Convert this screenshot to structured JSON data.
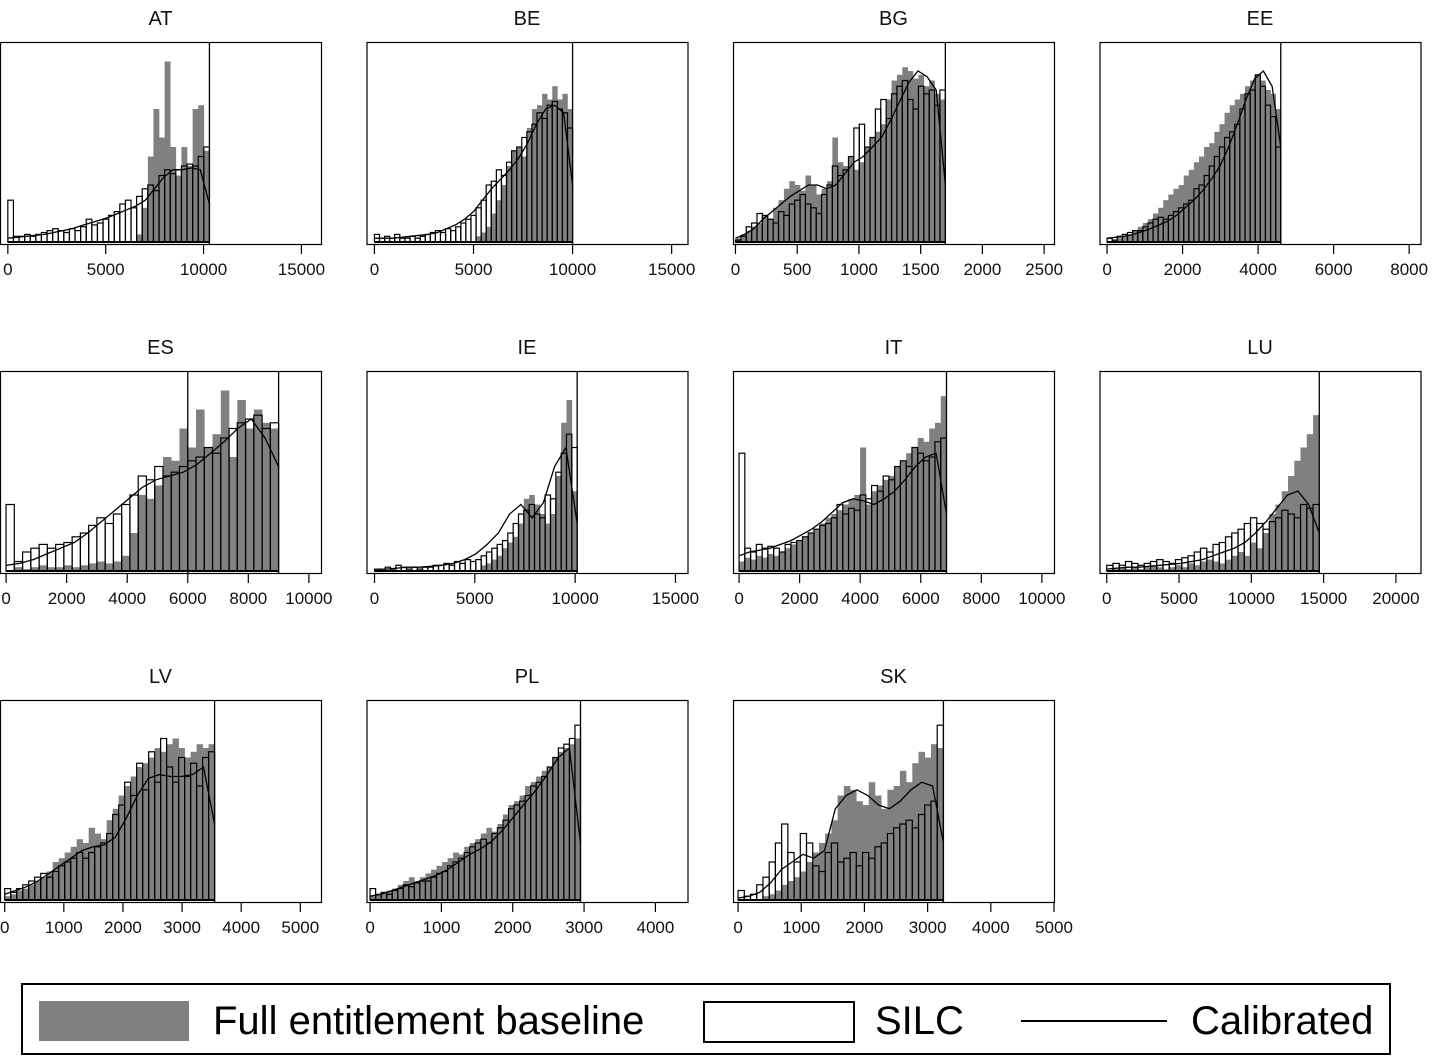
{
  "chart_data": [
    {
      "type": "bar",
      "title": "AT",
      "xticks": [
        0,
        5000,
        10000,
        15000
      ],
      "xlim": [
        -400,
        16000
      ],
      "vline": 10300,
      "baseline": [
        0,
        0,
        0,
        0,
        0,
        0,
        0,
        0,
        0,
        0,
        0,
        0,
        0,
        0,
        0,
        0,
        0,
        0,
        0,
        0,
        0,
        0,
        0,
        0.04,
        0.18,
        0.45,
        0.7,
        0.55,
        0.95,
        0.5,
        0.35,
        0.5,
        0.4,
        0.7,
        0.72,
        0.48
      ],
      "silc": [
        0.22,
        0.03,
        0.03,
        0.04,
        0.03,
        0.04,
        0.05,
        0.06,
        0.07,
        0.06,
        0.05,
        0.07,
        0.06,
        0.08,
        0.12,
        0.09,
        0.1,
        0.12,
        0.14,
        0.16,
        0.2,
        0.22,
        0.18,
        0.24,
        0.28,
        0.3,
        0.27,
        0.35,
        0.38,
        0.36,
        0.38,
        0.4,
        0.41,
        0.4,
        0.45,
        0.5
      ],
      "calib": [
        0.02,
        0.025,
        0.03,
        0.035,
        0.04,
        0.05,
        0.06,
        0.07,
        0.085,
        0.1,
        0.115,
        0.13,
        0.15,
        0.17,
        0.19,
        0.22,
        0.28,
        0.34,
        0.38,
        0.38,
        0.39,
        0.38,
        0.2
      ]
    },
    {
      "type": "bar",
      "title": "BE",
      "xticks": [
        0,
        5000,
        10000,
        15000
      ],
      "xlim": [
        -400,
        15800
      ],
      "vline": 10000,
      "baseline": [
        0,
        0,
        0,
        0,
        0,
        0,
        0,
        0,
        0,
        0,
        0,
        0,
        0,
        0,
        0,
        0,
        0,
        0,
        0,
        0,
        0.03,
        0.05,
        0.08,
        0.15,
        0.22,
        0.3,
        0.4,
        0.48,
        0.5,
        0.45,
        0.6,
        0.7,
        0.72,
        0.78,
        0.75,
        0.82,
        0.75,
        0.78,
        0.7
      ],
      "silc": [
        0.04,
        0.02,
        0.03,
        0.02,
        0.04,
        0.02,
        0.02,
        0.03,
        0.02,
        0.03,
        0.04,
        0.05,
        0.06,
        0.05,
        0.07,
        0.06,
        0.08,
        0.1,
        0.12,
        0.14,
        0.18,
        0.22,
        0.3,
        0.32,
        0.38,
        0.35,
        0.42,
        0.48,
        0.5,
        0.55,
        0.58,
        0.62,
        0.68,
        0.65,
        0.72,
        0.74,
        0.7,
        0.68,
        0.6
      ],
      "calib": [
        0.02,
        0.02,
        0.02,
        0.025,
        0.03,
        0.035,
        0.04,
        0.05,
        0.07,
        0.09,
        0.12,
        0.16,
        0.22,
        0.28,
        0.33,
        0.38,
        0.44,
        0.52,
        0.62,
        0.7,
        0.72,
        0.68,
        0.3
      ]
    },
    {
      "type": "bar",
      "title": "BG",
      "xticks": [
        0,
        500,
        1000,
        1500,
        2000,
        2500
      ],
      "xlim": [
        -20,
        2580
      ],
      "vline": 1700,
      "baseline": [
        0.02,
        0.04,
        0.06,
        0.08,
        0.1,
        0.14,
        0.12,
        0.18,
        0.22,
        0.28,
        0.32,
        0.3,
        0.27,
        0.35,
        0.3,
        0.25,
        0.28,
        0.32,
        0.55,
        0.42,
        0.4,
        0.45,
        0.38,
        0.42,
        0.5,
        0.55,
        0.58,
        0.62,
        0.75,
        0.85,
        0.88,
        0.92,
        0.9,
        0.86,
        0.88,
        0.82,
        0.85,
        0.78,
        0.75
      ],
      "silc": [
        0.01,
        0.03,
        0.08,
        0.1,
        0.15,
        0.14,
        0.12,
        0.1,
        0.16,
        0.14,
        0.2,
        0.22,
        0.25,
        0.2,
        0.18,
        0.15,
        0.25,
        0.3,
        0.4,
        0.35,
        0.38,
        0.45,
        0.6,
        0.62,
        0.5,
        0.55,
        0.7,
        0.75,
        0.65,
        0.78,
        0.82,
        0.85,
        0.75,
        0.7,
        0.82,
        0.78,
        0.8,
        0.72,
        0.8
      ],
      "calib": [
        0.02,
        0.04,
        0.07,
        0.12,
        0.16,
        0.2,
        0.24,
        0.27,
        0.3,
        0.3,
        0.28,
        0.3,
        0.36,
        0.42,
        0.45,
        0.5,
        0.55,
        0.64,
        0.74,
        0.84,
        0.9,
        0.87,
        0.8,
        0.3
      ]
    },
    {
      "type": "bar",
      "title": "EE",
      "xticks": [
        0,
        2000,
        4000,
        6000,
        8000
      ],
      "xlim": [
        -200,
        8300
      ],
      "vline": 4600,
      "baseline": [
        0,
        0.01,
        0.02,
        0.03,
        0.04,
        0.06,
        0.08,
        0.1,
        0.12,
        0.15,
        0.18,
        0.22,
        0.25,
        0.28,
        0.3,
        0.35,
        0.38,
        0.42,
        0.45,
        0.5,
        0.52,
        0.58,
        0.62,
        0.68,
        0.72,
        0.75,
        0.78,
        0.82,
        0.85,
        0.88,
        0.85,
        0.8,
        0.78,
        0.7
      ],
      "silc": [
        0.02,
        0.01,
        0.03,
        0.04,
        0.05,
        0.06,
        0.06,
        0.08,
        0.1,
        0.12,
        0.13,
        0.12,
        0.14,
        0.16,
        0.18,
        0.2,
        0.22,
        0.28,
        0.3,
        0.35,
        0.4,
        0.45,
        0.5,
        0.55,
        0.58,
        0.62,
        0.7,
        0.78,
        0.8,
        0.88,
        0.82,
        0.72,
        0.66,
        0.5
      ],
      "calib": [
        0.02,
        0.025,
        0.03,
        0.04,
        0.055,
        0.07,
        0.09,
        0.11,
        0.14,
        0.18,
        0.22,
        0.27,
        0.33,
        0.4,
        0.5,
        0.62,
        0.75,
        0.86,
        0.9,
        0.82,
        0.5
      ]
    },
    {
      "type": "bar",
      "title": "ES",
      "xticks": [
        0,
        2000,
        4000,
        6000,
        8000,
        10000
      ],
      "xlim": [
        -200,
        10400
      ],
      "vline": 9000,
      "vline2": 6000,
      "baseline": [
        0,
        0.02,
        0.01,
        0.02,
        0.03,
        0.02,
        0.02,
        0.03,
        0.02,
        0.03,
        0.04,
        0.05,
        0.04,
        0.05,
        0.08,
        0.2,
        0.4,
        0.38,
        0.45,
        0.6,
        0.58,
        0.75,
        0.65,
        0.85,
        0.65,
        0.72,
        0.95,
        0.6,
        0.9,
        0.75,
        0.85,
        0.78,
        0.75
      ],
      "silc": [
        0.35,
        0.05,
        0.1,
        0.12,
        0.14,
        0.12,
        0.14,
        0.15,
        0.18,
        0.2,
        0.24,
        0.28,
        0.25,
        0.3,
        0.35,
        0.4,
        0.5,
        0.48,
        0.55,
        0.5,
        0.52,
        0.55,
        0.58,
        0.6,
        0.65,
        0.62,
        0.7,
        0.75,
        0.78,
        0.8,
        0.82,
        0.75,
        0.78
      ],
      "calib": [
        0.03,
        0.04,
        0.06,
        0.09,
        0.12,
        0.15,
        0.2,
        0.26,
        0.32,
        0.38,
        0.44,
        0.48,
        0.5,
        0.52,
        0.56,
        0.62,
        0.68,
        0.75,
        0.8,
        0.7,
        0.55
      ]
    },
    {
      "type": "bar",
      "title": "IE",
      "xticks": [
        0,
        5000,
        10000,
        15000
      ],
      "xlim": [
        -400,
        15600
      ],
      "vline": 10100,
      "baseline": [
        0,
        0,
        0,
        0,
        0,
        0,
        0,
        0,
        0,
        0,
        0,
        0,
        0,
        0,
        0,
        0,
        0,
        0,
        0,
        0,
        0.03,
        0.04,
        0.06,
        0.08,
        0.12,
        0.15,
        0.18,
        0.25,
        0.38,
        0.4,
        0.35,
        0.3,
        0.25,
        0.3,
        0.5,
        0.78,
        0.9,
        0.42
      ],
      "silc": [
        0.01,
        0.01,
        0.02,
        0.01,
        0.03,
        0.02,
        0.01,
        0.02,
        0.01,
        0.02,
        0.02,
        0.03,
        0.03,
        0.04,
        0.03,
        0.05,
        0.04,
        0.06,
        0.05,
        0.06,
        0.08,
        0.1,
        0.12,
        0.14,
        0.16,
        0.2,
        0.25,
        0.3,
        0.32,
        0.35,
        0.3,
        0.28,
        0.4,
        0.38,
        0.52,
        0.62,
        0.72,
        0.65
      ],
      "calib": [
        0.01,
        0.01,
        0.015,
        0.02,
        0.02,
        0.025,
        0.03,
        0.04,
        0.06,
        0.09,
        0.14,
        0.2,
        0.3,
        0.35,
        0.28,
        0.36,
        0.55,
        0.65,
        0.25
      ]
    },
    {
      "type": "bar",
      "title": "IT",
      "xticks": [
        0,
        2000,
        4000,
        6000,
        8000,
        10000
      ],
      "xlim": [
        -200,
        10400
      ],
      "vline": 6850,
      "baseline": [
        0.05,
        0.07,
        0.06,
        0.08,
        0.07,
        0.09,
        0.08,
        0.1,
        0.12,
        0.14,
        0.16,
        0.18,
        0.2,
        0.22,
        0.25,
        0.28,
        0.3,
        0.32,
        0.35,
        0.38,
        0.4,
        0.65,
        0.35,
        0.42,
        0.45,
        0.48,
        0.5,
        0.55,
        0.58,
        0.62,
        0.65,
        0.7,
        0.68,
        0.75,
        0.78,
        0.92
      ],
      "silc": [
        0.62,
        0.12,
        0.1,
        0.14,
        0.12,
        0.13,
        0.12,
        0.1,
        0.14,
        0.15,
        0.16,
        0.18,
        0.2,
        0.22,
        0.24,
        0.25,
        0.28,
        0.35,
        0.3,
        0.33,
        0.32,
        0.4,
        0.38,
        0.45,
        0.42,
        0.5,
        0.48,
        0.55,
        0.58,
        0.55,
        0.65,
        0.62,
        0.58,
        0.6,
        0.68,
        0.7
      ],
      "calib": [
        0.08,
        0.1,
        0.11,
        0.12,
        0.14,
        0.16,
        0.19,
        0.22,
        0.26,
        0.31,
        0.36,
        0.38,
        0.37,
        0.35,
        0.38,
        0.42,
        0.48,
        0.55,
        0.6,
        0.62,
        0.3
      ]
    },
    {
      "type": "bar",
      "title": "LU",
      "xticks": [
        0,
        5000,
        10000,
        15000,
        20000
      ],
      "xlim": [
        -500,
        21700
      ],
      "vline": 14700,
      "baseline": [
        0,
        0.01,
        0.02,
        0.01,
        0.02,
        0.01,
        0.02,
        0.03,
        0.02,
        0.01,
        0.02,
        0.03,
        0.02,
        0.04,
        0.03,
        0.05,
        0.06,
        0.05,
        0.04,
        0.06,
        0.08,
        0.1,
        0.08,
        0.15,
        0.12,
        0.2,
        0.3,
        0.35,
        0.42,
        0.5,
        0.58,
        0.65,
        0.72,
        0.82
      ],
      "silc": [
        0.03,
        0.04,
        0.03,
        0.05,
        0.04,
        0.03,
        0.04,
        0.05,
        0.06,
        0.05,
        0.04,
        0.06,
        0.07,
        0.08,
        0.1,
        0.12,
        0.1,
        0.14,
        0.15,
        0.18,
        0.2,
        0.22,
        0.25,
        0.28,
        0.25,
        0.22,
        0.26,
        0.28,
        0.32,
        0.3,
        0.28,
        0.35,
        0.33,
        0.35
      ],
      "calib": [
        0.01,
        0.015,
        0.02,
        0.02,
        0.025,
        0.03,
        0.035,
        0.04,
        0.05,
        0.06,
        0.08,
        0.1,
        0.12,
        0.15,
        0.2,
        0.26,
        0.33,
        0.4,
        0.42,
        0.35,
        0.2
      ]
    },
    {
      "type": "bar",
      "title": "LV",
      "xticks": [
        0,
        1000,
        2000,
        3000,
        4000,
        5000
      ],
      "xlim": [
        -80,
        5350
      ],
      "vline": 3550,
      "baseline": [
        0.02,
        0.03,
        0.05,
        0.06,
        0.08,
        0.1,
        0.12,
        0.15,
        0.2,
        0.22,
        0.25,
        0.28,
        0.32,
        0.3,
        0.38,
        0.35,
        0.32,
        0.42,
        0.48,
        0.55,
        0.6,
        0.65,
        0.7,
        0.72,
        0.75,
        0.8,
        0.78,
        0.82,
        0.85,
        0.8,
        0.75,
        0.78,
        0.82,
        0.8,
        0.82
      ],
      "silc": [
        0.06,
        0.04,
        0.06,
        0.08,
        0.1,
        0.12,
        0.14,
        0.12,
        0.15,
        0.18,
        0.2,
        0.22,
        0.25,
        0.22,
        0.25,
        0.28,
        0.3,
        0.35,
        0.45,
        0.5,
        0.62,
        0.55,
        0.72,
        0.58,
        0.78,
        0.62,
        0.85,
        0.7,
        0.62,
        0.75,
        0.65,
        0.72,
        0.6,
        0.75,
        0.78
      ],
      "calib": [
        0.03,
        0.05,
        0.07,
        0.1,
        0.14,
        0.18,
        0.22,
        0.26,
        0.28,
        0.29,
        0.33,
        0.43,
        0.55,
        0.64,
        0.66,
        0.65,
        0.65,
        0.66,
        0.7,
        0.4
      ]
    },
    {
      "type": "bar",
      "title": "PL",
      "xticks": [
        0,
        1000,
        2000,
        3000,
        4000
      ],
      "xlim": [
        -50,
        4450
      ],
      "vline": 2950,
      "baseline": [
        0.02,
        0.03,
        0.04,
        0.05,
        0.06,
        0.08,
        0.1,
        0.12,
        0.1,
        0.12,
        0.14,
        0.16,
        0.18,
        0.2,
        0.22,
        0.25,
        0.24,
        0.28,
        0.3,
        0.32,
        0.35,
        0.38,
        0.36,
        0.4,
        0.45,
        0.5,
        0.52,
        0.55,
        0.6,
        0.62,
        0.65,
        0.68,
        0.7,
        0.75,
        0.78,
        0.8,
        0.82,
        0.85
      ],
      "silc": [
        0.06,
        0.03,
        0.04,
        0.03,
        0.05,
        0.06,
        0.08,
        0.07,
        0.09,
        0.1,
        0.1,
        0.12,
        0.14,
        0.15,
        0.18,
        0.2,
        0.22,
        0.25,
        0.28,
        0.3,
        0.32,
        0.3,
        0.35,
        0.38,
        0.42,
        0.48,
        0.5,
        0.52,
        0.55,
        0.6,
        0.62,
        0.65,
        0.7,
        0.75,
        0.8,
        0.82,
        0.85,
        0.92
      ],
      "calib": [
        0.02,
        0.03,
        0.05,
        0.07,
        0.09,
        0.11,
        0.13,
        0.16,
        0.2,
        0.24,
        0.27,
        0.31,
        0.37,
        0.44,
        0.51,
        0.58,
        0.66,
        0.75,
        0.8,
        0.3
      ]
    },
    {
      "type": "bar",
      "title": "SK",
      "xticks": [
        0,
        1000,
        2000,
        3000,
        4000,
        5000
      ],
      "xlim": [
        -80,
        5000
      ],
      "vline": 3250,
      "baseline": [
        0,
        0,
        0,
        0,
        0.02,
        0.03,
        0.05,
        0.08,
        0.1,
        0.12,
        0.15,
        0.2,
        0.25,
        0.3,
        0.35,
        0.42,
        0.55,
        0.6,
        0.58,
        0.52,
        0.5,
        0.62,
        0.55,
        0.48,
        0.58,
        0.6,
        0.68,
        0.62,
        0.72,
        0.78,
        0.75,
        0.82,
        0.8
      ],
      "silc": [
        0.05,
        0.02,
        0.03,
        0.08,
        0.12,
        0.2,
        0.3,
        0.4,
        0.25,
        0.2,
        0.35,
        0.3,
        0.18,
        0.15,
        0.25,
        0.3,
        0.2,
        0.22,
        0.25,
        0.18,
        0.25,
        0.22,
        0.28,
        0.3,
        0.35,
        0.38,
        0.4,
        0.42,
        0.38,
        0.45,
        0.5,
        0.52,
        0.92
      ],
      "calib": [
        0.01,
        0.02,
        0.04,
        0.09,
        0.16,
        0.2,
        0.24,
        0.22,
        0.26,
        0.48,
        0.55,
        0.58,
        0.55,
        0.5,
        0.48,
        0.52,
        0.58,
        0.62,
        0.6,
        0.3
      ]
    }
  ],
  "legend": {
    "baseline_label": "Full entitlement baseline",
    "silc_label": "SILC",
    "calibrated_label": "Calibrated"
  },
  "colors": {
    "baseline": "#808080",
    "silc_fill": "#ffffff",
    "stroke": "#000000"
  }
}
